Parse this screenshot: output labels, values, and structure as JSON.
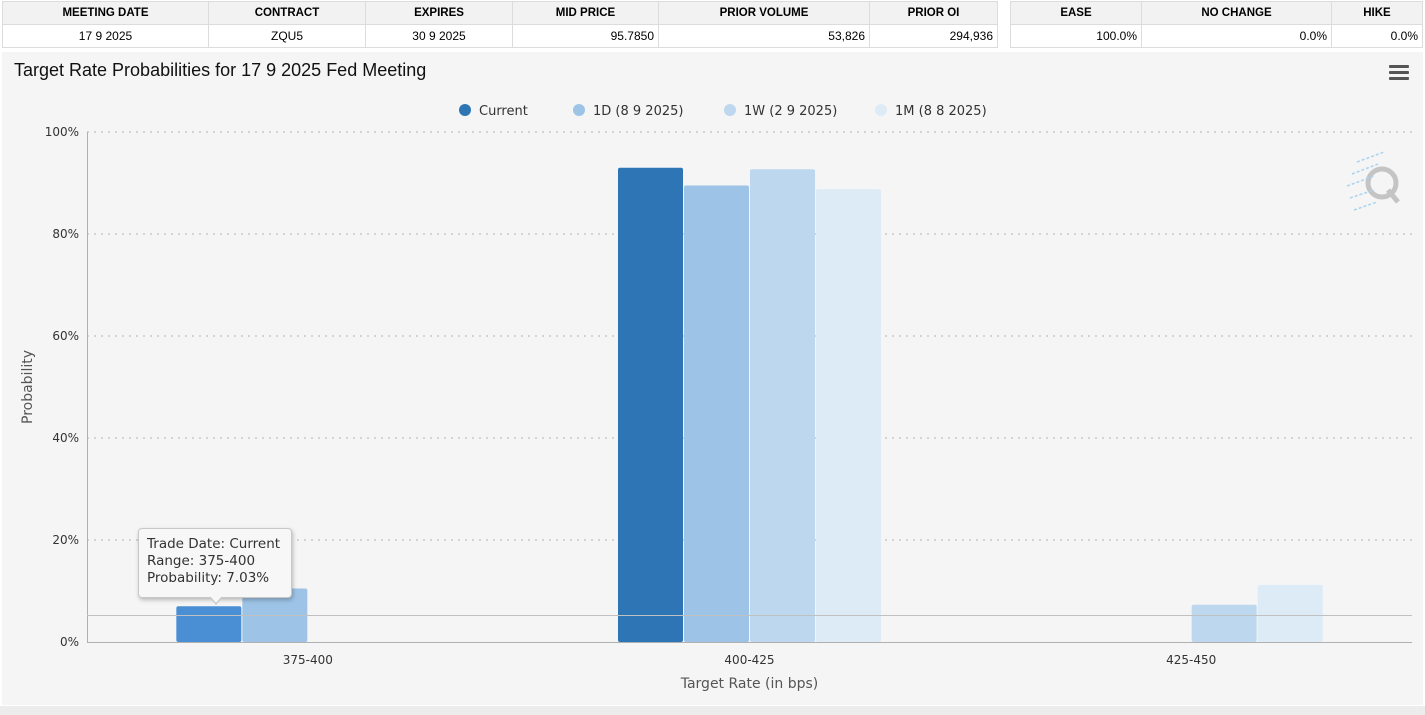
{
  "meeting_table": {
    "headers": [
      "MEETING DATE",
      "CONTRACT",
      "EXPIRES",
      "MID PRICE",
      "PRIOR VOLUME",
      "PRIOR OI"
    ],
    "row": [
      "17 9 2025",
      "ZQU5",
      "30 9 2025",
      "95.7850",
      "53,826",
      "294,936"
    ]
  },
  "probability_table": {
    "headers": [
      "EASE",
      "NO CHANGE",
      "HIKE"
    ],
    "row": [
      "100.0%",
      "0.0%",
      "0.0%"
    ]
  },
  "menu_icon": "hamburger-menu-icon",
  "watermark_icon": "q-logo-icon",
  "tooltip": {
    "line1": "Trade Date: Current",
    "line2": "Range: 375-400",
    "line3": "Probability: 7.03%"
  },
  "chart_data": {
    "type": "bar",
    "title": "Target Rate Probabilities for 17 9 2025 Fed Meeting",
    "xlabel": "Target Rate (in bps)",
    "ylabel": "Probability",
    "categories": [
      "375-400",
      "400-425",
      "425-450"
    ],
    "ylim": [
      0,
      100
    ],
    "yticks": [
      "0%",
      "20%",
      "40%",
      "60%",
      "80%",
      "100%"
    ],
    "ytick_values": [
      0,
      20,
      40,
      60,
      80,
      100
    ],
    "grid": true,
    "legend_position": "top-center",
    "series": [
      {
        "name": "Current",
        "color": "#2e75b6",
        "values": [
          7.0,
          93.0,
          0
        ]
      },
      {
        "name": "1D (8 9 2025)",
        "color": "#9dc3e6",
        "values": [
          10.5,
          89.5,
          0
        ]
      },
      {
        "name": "1W (2 9 2025)",
        "color": "#bdd7ee",
        "values": [
          0,
          92.7,
          7.3
        ]
      },
      {
        "name": "1M (8 8 2025)",
        "color": "#ddebf7",
        "values": [
          0,
          88.8,
          11.2
        ]
      }
    ],
    "highlight_color": "#4a8fd4"
  }
}
